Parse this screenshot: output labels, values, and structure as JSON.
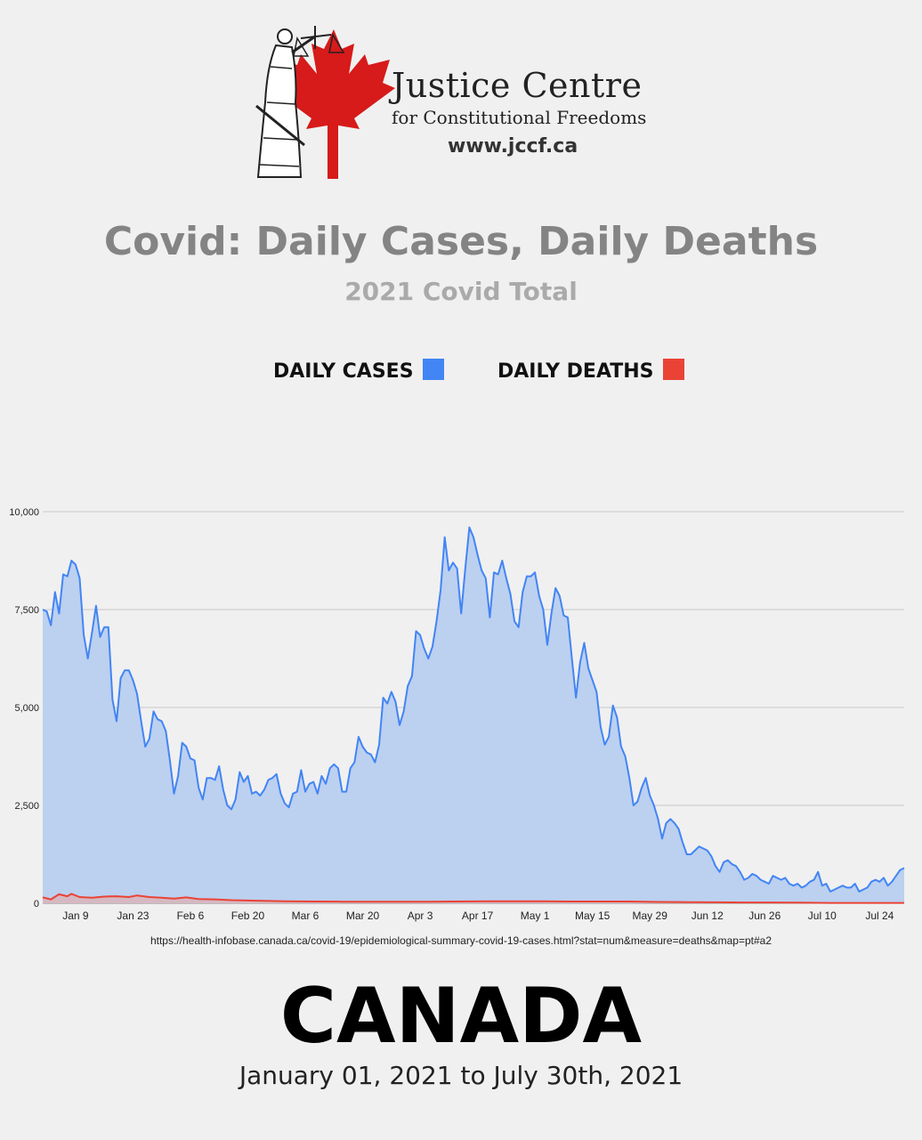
{
  "header": {
    "org_name": "Justice Centre",
    "org_subtitle": "for Constitutional Freedoms",
    "url": "www.jccf.ca"
  },
  "title": "Covid: Daily Cases, Daily Deaths",
  "subtitle": "2021 Covid Total",
  "legend": [
    {
      "label": "DAILY CASES",
      "color": "#4285f4"
    },
    {
      "label": "DAILY DEATHS",
      "color": "#ea4335"
    }
  ],
  "source": "https://health-infobase.canada.ca/covid-19/epidemiological-summary-covid-19-cases.html?stat=num&measure=deaths&map=pt#a2",
  "footer": {
    "country": "CANADA",
    "date_range": "January 01, 2021 to July 30th, 2021"
  },
  "chart_data": {
    "type": "area",
    "x_start": "2021-01-01",
    "x_end": "2021-07-30",
    "xticks": [
      {
        "date": "2021-01-09",
        "label": "Jan 9"
      },
      {
        "date": "2021-01-23",
        "label": "Jan 23"
      },
      {
        "date": "2021-02-06",
        "label": "Feb 6"
      },
      {
        "date": "2021-02-20",
        "label": "Feb 20"
      },
      {
        "date": "2021-03-06",
        "label": "Mar 6"
      },
      {
        "date": "2021-03-20",
        "label": "Mar 20"
      },
      {
        "date": "2021-04-03",
        "label": "Apr 3"
      },
      {
        "date": "2021-04-17",
        "label": "Apr 17"
      },
      {
        "date": "2021-05-01",
        "label": "May 1"
      },
      {
        "date": "2021-05-15",
        "label": "May 15"
      },
      {
        "date": "2021-05-29",
        "label": "May 29"
      },
      {
        "date": "2021-06-12",
        "label": "Jun 12"
      },
      {
        "date": "2021-06-26",
        "label": "Jun 26"
      },
      {
        "date": "2021-07-10",
        "label": "Jul 10"
      },
      {
        "date": "2021-07-24",
        "label": "Jul 24"
      }
    ],
    "yticks": [
      {
        "value": 0,
        "label": "0"
      },
      {
        "value": 2500,
        "label": "2,500"
      },
      {
        "value": 5000,
        "label": "5,000"
      },
      {
        "value": 7500,
        "label": "7,500"
      },
      {
        "value": 10000,
        "label": "10,000"
      }
    ],
    "ylim": [
      0,
      10000
    ],
    "grid": true,
    "series": [
      {
        "color": "#4285f4",
        "fill": "#bcd0f0",
        "points": [
          [
            "2021-01-01",
            7500
          ],
          [
            "2021-01-02",
            7450
          ],
          [
            "2021-01-03",
            7100
          ],
          [
            "2021-01-04",
            7950
          ],
          [
            "2021-01-05",
            7400
          ],
          [
            "2021-01-06",
            8400
          ],
          [
            "2021-01-07",
            8350
          ],
          [
            "2021-01-08",
            8750
          ],
          [
            "2021-01-09",
            8650
          ],
          [
            "2021-01-10",
            8300
          ],
          [
            "2021-01-11",
            6850
          ],
          [
            "2021-01-12",
            6250
          ],
          [
            "2021-01-13",
            6900
          ],
          [
            "2021-01-14",
            7600
          ],
          [
            "2021-01-15",
            6800
          ],
          [
            "2021-01-16",
            7050
          ],
          [
            "2021-01-17",
            7050
          ],
          [
            "2021-01-18",
            5200
          ],
          [
            "2021-01-19",
            4650
          ],
          [
            "2021-01-20",
            5750
          ],
          [
            "2021-01-21",
            5950
          ],
          [
            "2021-01-22",
            5950
          ],
          [
            "2021-01-23",
            5700
          ],
          [
            "2021-01-24",
            5350
          ],
          [
            "2021-01-25",
            4650
          ],
          [
            "2021-01-26",
            4000
          ],
          [
            "2021-01-27",
            4200
          ],
          [
            "2021-01-28",
            4900
          ],
          [
            "2021-01-29",
            4700
          ],
          [
            "2021-01-30",
            4650
          ],
          [
            "2021-01-31",
            4400
          ],
          [
            "2021-02-01",
            3650
          ],
          [
            "2021-02-02",
            2800
          ],
          [
            "2021-02-03",
            3250
          ],
          [
            "2021-02-04",
            4100
          ],
          [
            "2021-02-05",
            4000
          ],
          [
            "2021-02-06",
            3700
          ],
          [
            "2021-02-07",
            3650
          ],
          [
            "2021-02-08",
            2950
          ],
          [
            "2021-02-09",
            2650
          ],
          [
            "2021-02-10",
            3200
          ],
          [
            "2021-02-11",
            3200
          ],
          [
            "2021-02-12",
            3150
          ],
          [
            "2021-02-13",
            3500
          ],
          [
            "2021-02-14",
            2900
          ],
          [
            "2021-02-15",
            2500
          ],
          [
            "2021-02-16",
            2400
          ],
          [
            "2021-02-17",
            2650
          ],
          [
            "2021-02-18",
            3350
          ],
          [
            "2021-02-19",
            3100
          ],
          [
            "2021-02-20",
            3250
          ],
          [
            "2021-02-21",
            2800
          ],
          [
            "2021-02-22",
            2850
          ],
          [
            "2021-02-23",
            2750
          ],
          [
            "2021-02-24",
            2900
          ],
          [
            "2021-02-25",
            3150
          ],
          [
            "2021-02-26",
            3200
          ],
          [
            "2021-02-27",
            3300
          ],
          [
            "2021-02-28",
            2800
          ],
          [
            "2021-03-01",
            2550
          ],
          [
            "2021-03-02",
            2450
          ],
          [
            "2021-03-03",
            2800
          ],
          [
            "2021-03-04",
            2850
          ],
          [
            "2021-03-05",
            3400
          ],
          [
            "2021-03-06",
            2850
          ],
          [
            "2021-03-07",
            3050
          ],
          [
            "2021-03-08",
            3100
          ],
          [
            "2021-03-09",
            2800
          ],
          [
            "2021-03-10",
            3250
          ],
          [
            "2021-03-11",
            3050
          ],
          [
            "2021-03-12",
            3450
          ],
          [
            "2021-03-13",
            3550
          ],
          [
            "2021-03-14",
            3450
          ],
          [
            "2021-03-15",
            2850
          ],
          [
            "2021-03-16",
            2850
          ],
          [
            "2021-03-17",
            3450
          ],
          [
            "2021-03-18",
            3600
          ],
          [
            "2021-03-19",
            4250
          ],
          [
            "2021-03-20",
            4000
          ],
          [
            "2021-03-21",
            3850
          ],
          [
            "2021-03-22",
            3800
          ],
          [
            "2021-03-23",
            3600
          ],
          [
            "2021-03-24",
            4050
          ],
          [
            "2021-03-25",
            5250
          ],
          [
            "2021-03-26",
            5100
          ],
          [
            "2021-03-27",
            5400
          ],
          [
            "2021-03-28",
            5150
          ],
          [
            "2021-03-29",
            4550
          ],
          [
            "2021-03-30",
            4900
          ],
          [
            "2021-03-31",
            5550
          ],
          [
            "2021-04-01",
            5800
          ],
          [
            "2021-04-02",
            6950
          ],
          [
            "2021-04-03",
            6850
          ],
          [
            "2021-04-04",
            6500
          ],
          [
            "2021-04-05",
            6250
          ],
          [
            "2021-04-06",
            6550
          ],
          [
            "2021-04-07",
            7200
          ],
          [
            "2021-04-08",
            8000
          ],
          [
            "2021-04-09",
            9350
          ],
          [
            "2021-04-10",
            8500
          ],
          [
            "2021-04-11",
            8700
          ],
          [
            "2021-04-12",
            8550
          ],
          [
            "2021-04-13",
            7400
          ],
          [
            "2021-04-14",
            8550
          ],
          [
            "2021-04-15",
            9600
          ],
          [
            "2021-04-16",
            9350
          ],
          [
            "2021-04-17",
            8900
          ],
          [
            "2021-04-18",
            8500
          ],
          [
            "2021-04-19",
            8300
          ],
          [
            "2021-04-20",
            7300
          ],
          [
            "2021-04-21",
            8450
          ],
          [
            "2021-04-22",
            8400
          ],
          [
            "2021-04-23",
            8750
          ],
          [
            "2021-04-24",
            8300
          ],
          [
            "2021-04-25",
            7900
          ],
          [
            "2021-04-26",
            7200
          ],
          [
            "2021-04-27",
            7050
          ],
          [
            "2021-04-28",
            7950
          ],
          [
            "2021-04-29",
            8350
          ],
          [
            "2021-04-30",
            8350
          ],
          [
            "2021-05-01",
            8450
          ],
          [
            "2021-05-02",
            7850
          ],
          [
            "2021-05-03",
            7500
          ],
          [
            "2021-05-04",
            6600
          ],
          [
            "2021-05-05",
            7400
          ],
          [
            "2021-05-06",
            8050
          ],
          [
            "2021-05-07",
            7850
          ],
          [
            "2021-05-08",
            7350
          ],
          [
            "2021-05-09",
            7300
          ],
          [
            "2021-05-10",
            6250
          ],
          [
            "2021-05-11",
            5250
          ],
          [
            "2021-05-12",
            6150
          ],
          [
            "2021-05-13",
            6650
          ],
          [
            "2021-05-14",
            6000
          ],
          [
            "2021-05-15",
            5700
          ],
          [
            "2021-05-16",
            5400
          ],
          [
            "2021-05-17",
            4500
          ],
          [
            "2021-05-18",
            4050
          ],
          [
            "2021-05-19",
            4250
          ],
          [
            "2021-05-20",
            5050
          ],
          [
            "2021-05-21",
            4750
          ],
          [
            "2021-05-22",
            4000
          ],
          [
            "2021-05-23",
            3750
          ],
          [
            "2021-05-24",
            3200
          ],
          [
            "2021-05-25",
            2500
          ],
          [
            "2021-05-26",
            2600
          ],
          [
            "2021-05-27",
            2950
          ],
          [
            "2021-05-28",
            3200
          ],
          [
            "2021-05-29",
            2750
          ],
          [
            "2021-05-30",
            2500
          ],
          [
            "2021-05-31",
            2150
          ],
          [
            "2021-06-01",
            1650
          ],
          [
            "2021-06-02",
            2050
          ],
          [
            "2021-06-03",
            2150
          ],
          [
            "2021-06-04",
            2050
          ],
          [
            "2021-06-05",
            1900
          ],
          [
            "2021-06-06",
            1550
          ],
          [
            "2021-06-07",
            1250
          ],
          [
            "2021-06-08",
            1250
          ],
          [
            "2021-06-09",
            1350
          ],
          [
            "2021-06-10",
            1450
          ],
          [
            "2021-06-11",
            1400
          ],
          [
            "2021-06-12",
            1350
          ],
          [
            "2021-06-13",
            1200
          ],
          [
            "2021-06-14",
            950
          ],
          [
            "2021-06-15",
            800
          ],
          [
            "2021-06-16",
            1050
          ],
          [
            "2021-06-17",
            1100
          ],
          [
            "2021-06-18",
            1000
          ],
          [
            "2021-06-19",
            950
          ],
          [
            "2021-06-20",
            800
          ],
          [
            "2021-06-21",
            600
          ],
          [
            "2021-06-22",
            650
          ],
          [
            "2021-06-23",
            750
          ],
          [
            "2021-06-24",
            700
          ],
          [
            "2021-06-25",
            600
          ],
          [
            "2021-06-26",
            550
          ],
          [
            "2021-06-27",
            500
          ],
          [
            "2021-06-28",
            700
          ],
          [
            "2021-06-29",
            650
          ],
          [
            "2021-06-30",
            600
          ],
          [
            "2021-07-01",
            650
          ],
          [
            "2021-07-02",
            500
          ],
          [
            "2021-07-03",
            450
          ],
          [
            "2021-07-04",
            500
          ],
          [
            "2021-07-05",
            400
          ],
          [
            "2021-07-06",
            450
          ],
          [
            "2021-07-07",
            550
          ],
          [
            "2021-07-08",
            600
          ],
          [
            "2021-07-09",
            800
          ],
          [
            "2021-07-10",
            450
          ],
          [
            "2021-07-11",
            500
          ],
          [
            "2021-07-12",
            300
          ],
          [
            "2021-07-13",
            350
          ],
          [
            "2021-07-14",
            400
          ],
          [
            "2021-07-15",
            450
          ],
          [
            "2021-07-16",
            400
          ],
          [
            "2021-07-17",
            400
          ],
          [
            "2021-07-18",
            500
          ],
          [
            "2021-07-19",
            300
          ],
          [
            "2021-07-20",
            350
          ],
          [
            "2021-07-21",
            400
          ],
          [
            "2021-07-22",
            550
          ],
          [
            "2021-07-23",
            600
          ],
          [
            "2021-07-24",
            550
          ],
          [
            "2021-07-25",
            650
          ],
          [
            "2021-07-26",
            450
          ],
          [
            "2021-07-27",
            550
          ],
          [
            "2021-07-28",
            700
          ],
          [
            "2021-07-29",
            850
          ],
          [
            "2021-07-30",
            900
          ]
        ]
      },
      {
        "color": "#ea4335",
        "fill": "#e8a8a4",
        "points": [
          [
            "2021-01-01",
            150
          ],
          [
            "2021-01-03",
            100
          ],
          [
            "2021-01-05",
            230
          ],
          [
            "2021-01-07",
            180
          ],
          [
            "2021-01-08",
            240
          ],
          [
            "2021-01-10",
            160
          ],
          [
            "2021-01-13",
            140
          ],
          [
            "2021-01-16",
            170
          ],
          [
            "2021-01-19",
            180
          ],
          [
            "2021-01-22",
            160
          ],
          [
            "2021-01-24",
            200
          ],
          [
            "2021-01-27",
            160
          ],
          [
            "2021-01-30",
            140
          ],
          [
            "2021-02-02",
            120
          ],
          [
            "2021-02-05",
            150
          ],
          [
            "2021-02-08",
            110
          ],
          [
            "2021-02-12",
            100
          ],
          [
            "2021-02-16",
            80
          ],
          [
            "2021-02-20",
            70
          ],
          [
            "2021-02-25",
            60
          ],
          [
            "2021-03-01",
            50
          ],
          [
            "2021-03-08",
            45
          ],
          [
            "2021-03-15",
            40
          ],
          [
            "2021-03-22",
            40
          ],
          [
            "2021-03-29",
            40
          ],
          [
            "2021-04-05",
            40
          ],
          [
            "2021-04-12",
            45
          ],
          [
            "2021-04-19",
            50
          ],
          [
            "2021-04-26",
            50
          ],
          [
            "2021-05-03",
            50
          ],
          [
            "2021-05-10",
            45
          ],
          [
            "2021-05-17",
            45
          ],
          [
            "2021-05-24",
            45
          ],
          [
            "2021-05-31",
            35
          ],
          [
            "2021-06-07",
            30
          ],
          [
            "2021-06-14",
            25
          ],
          [
            "2021-06-21",
            20
          ],
          [
            "2021-06-28",
            20
          ],
          [
            "2021-07-05",
            15
          ],
          [
            "2021-07-12",
            10
          ],
          [
            "2021-07-19",
            10
          ],
          [
            "2021-07-26",
            10
          ],
          [
            "2021-07-30",
            10
          ]
        ]
      }
    ]
  }
}
